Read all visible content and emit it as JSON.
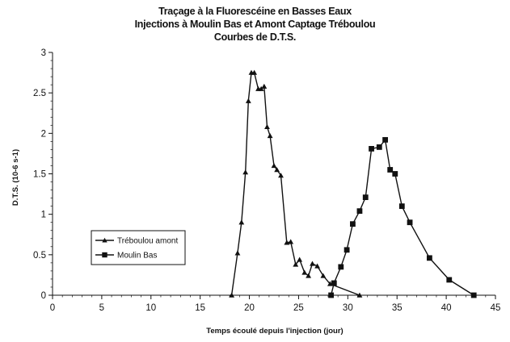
{
  "chart_data": {
    "type": "line",
    "title": "Traçage à la Fluorescéine en Basses Eaux",
    "subtitle": "Injections à Moulin Bas et Amont Captage Tréboulou",
    "subtitle2": "Courbes de D.T.S.",
    "xlabel": "Temps écoulé depuis l'injection (jour)",
    "ylabel": "D.T.S. (10-6 s-1)",
    "xlim": [
      0,
      45
    ],
    "ylim": [
      0,
      3
    ],
    "x_ticks": [
      "0",
      "5",
      "10",
      "15",
      "20",
      "25",
      "30",
      "35",
      "40",
      "45"
    ],
    "y_ticks": [
      "0",
      "0.5",
      "1",
      "1.5",
      "2",
      "2.5",
      "3"
    ],
    "grid": false,
    "legend_position": "bottom-left",
    "series": [
      {
        "name": "Tréboulou amont",
        "marker": "triangle",
        "color": "#111111",
        "x": [
          18.2,
          18.8,
          19.2,
          19.6,
          19.9,
          20.2,
          20.5,
          20.9,
          21.2,
          21.5,
          21.8,
          22.1,
          22.5,
          22.8,
          23.2,
          23.8,
          24.2,
          24.7,
          25.1,
          25.6,
          26.0,
          26.4,
          26.9,
          27.5,
          28.2,
          31.2
        ],
        "y": [
          0.0,
          0.52,
          0.9,
          1.52,
          2.4,
          2.75,
          2.75,
          2.55,
          2.55,
          2.58,
          2.08,
          1.97,
          1.6,
          1.55,
          1.48,
          0.65,
          0.66,
          0.38,
          0.44,
          0.28,
          0.24,
          0.39,
          0.36,
          0.24,
          0.14,
          0.0
        ]
      },
      {
        "name": "Moulin Bas",
        "marker": "square",
        "color": "#111111",
        "x": [
          28.3,
          28.6,
          29.3,
          29.9,
          30.5,
          31.2,
          31.8,
          32.4,
          33.2,
          33.8,
          34.3,
          34.8,
          35.5,
          36.3,
          38.3,
          40.3,
          42.8
        ],
        "y": [
          0.0,
          0.15,
          0.35,
          0.56,
          0.88,
          1.04,
          1.21,
          1.81,
          1.83,
          1.92,
          1.55,
          1.5,
          1.1,
          0.9,
          0.46,
          0.19,
          0.0
        ]
      }
    ]
  }
}
